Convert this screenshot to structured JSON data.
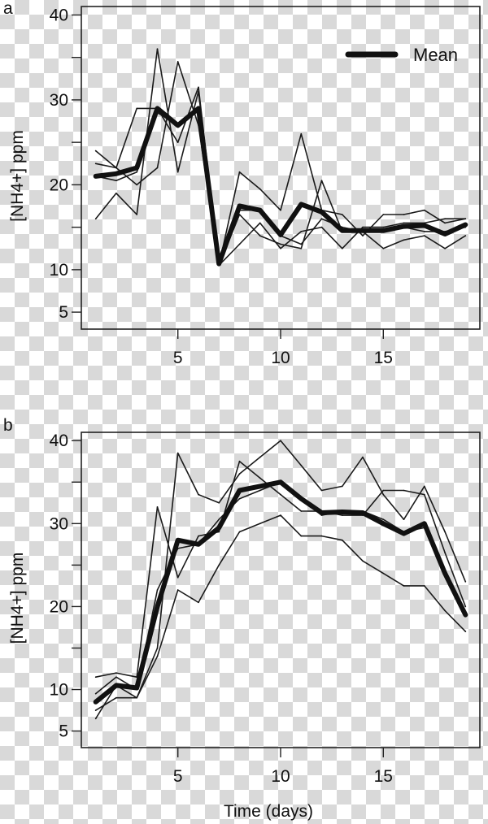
{
  "chart_data": [
    {
      "panel": "a",
      "type": "line",
      "xlabel": "",
      "ylabel": "[NH4+] ppm",
      "x": [
        1,
        2,
        3,
        4,
        5,
        6,
        7,
        8,
        9,
        10,
        11,
        12,
        13,
        14,
        15,
        16,
        17,
        18,
        19
      ],
      "xlim": [
        0.3,
        19.7
      ],
      "ylim": [
        3,
        41
      ],
      "xticks": [
        5,
        10,
        15
      ],
      "yticks": [
        5,
        10,
        20,
        30,
        40
      ],
      "ytick_minor": [
        15,
        25,
        35
      ],
      "legend": {
        "position": "top-right",
        "entries": [
          "Mean"
        ]
      },
      "series": [
        {
          "name": "",
          "role": "replicate",
          "values": [
            16,
            19,
            16.5,
            36,
            21.5,
            31,
            10.5,
            16.5,
            14,
            13,
            12.5,
            20.5,
            14.5,
            14.5,
            12.5,
            13.5,
            14,
            12.5,
            14
          ]
        },
        {
          "name": "",
          "role": "replicate",
          "values": [
            22.5,
            22,
            29,
            29,
            25,
            31.5,
            10.5,
            21.5,
            19.5,
            17,
            26,
            17,
            16.5,
            14,
            16.5,
            16.5,
            17,
            15.5,
            16
          ]
        },
        {
          "name": "",
          "role": "replicate",
          "values": [
            24,
            22,
            20,
            22,
            34.5,
            27,
            10.5,
            13,
            15.5,
            12.5,
            14.5,
            15,
            12.5,
            15,
            15,
            15.5,
            15.5,
            16,
            16
          ]
        },
        {
          "name": "",
          "role": "replicate",
          "values": [
            21,
            20.5,
            21.5,
            28.5,
            27,
            29,
            11,
            17,
            17,
            14,
            13,
            16,
            15,
            14.5,
            14.5,
            15,
            14.5,
            14.5,
            15
          ]
        },
        {
          "name": "Mean",
          "role": "mean",
          "values": [
            21,
            21.3,
            22,
            29,
            27,
            29,
            10.7,
            17.5,
            17,
            14.1,
            17.7,
            16.8,
            14.6,
            14.6,
            14.6,
            15.1,
            15.2,
            14.2,
            15.3
          ]
        }
      ]
    },
    {
      "panel": "b",
      "type": "line",
      "xlabel": "Time (days)",
      "ylabel": "[NH4+] ppm",
      "x": [
        1,
        2,
        3,
        4,
        5,
        6,
        7,
        8,
        9,
        10,
        11,
        12,
        13,
        14,
        15,
        16,
        17,
        18,
        19
      ],
      "xlim": [
        0.3,
        19.7
      ],
      "ylim": [
        3,
        41
      ],
      "xticks": [
        5,
        10,
        15
      ],
      "yticks": [
        5,
        10,
        20,
        30,
        40
      ],
      "ytick_minor": [
        15,
        25,
        35
      ],
      "series": [
        {
          "name": "",
          "role": "replicate",
          "values": [
            11.5,
            12,
            11.5,
            32,
            23.5,
            28.5,
            29,
            37.5,
            35.5,
            33.5,
            31.5,
            31.5,
            31,
            31,
            34,
            34,
            33.5,
            26.5,
            20
          ]
        },
        {
          "name": "",
          "role": "replicate",
          "values": [
            6.5,
            10.5,
            9,
            15,
            38.5,
            33.5,
            32.5,
            36,
            38,
            40,
            37,
            34,
            34.5,
            38,
            33.5,
            30.5,
            34.5,
            29,
            23
          ]
        },
        {
          "name": "",
          "role": "replicate",
          "values": [
            7.5,
            9,
            9,
            14,
            22,
            20.5,
            25,
            29,
            30,
            31,
            28.5,
            28.5,
            28,
            25.5,
            24,
            22.5,
            22.5,
            19.5,
            17
          ]
        },
        {
          "name": "",
          "role": "replicate",
          "values": [
            9.5,
            11.5,
            10,
            22,
            27,
            27.5,
            30.5,
            33,
            34,
            35,
            33,
            31,
            31.5,
            31.5,
            30.5,
            29,
            29.5,
            24,
            19
          ]
        },
        {
          "name": "Mean",
          "role": "mean",
          "values": [
            8.5,
            10.5,
            10.2,
            20,
            28,
            27.5,
            29.5,
            34,
            34.5,
            35,
            33,
            31.3,
            31.4,
            31.3,
            30,
            28.8,
            30,
            24,
            19
          ]
        }
      ]
    }
  ]
}
